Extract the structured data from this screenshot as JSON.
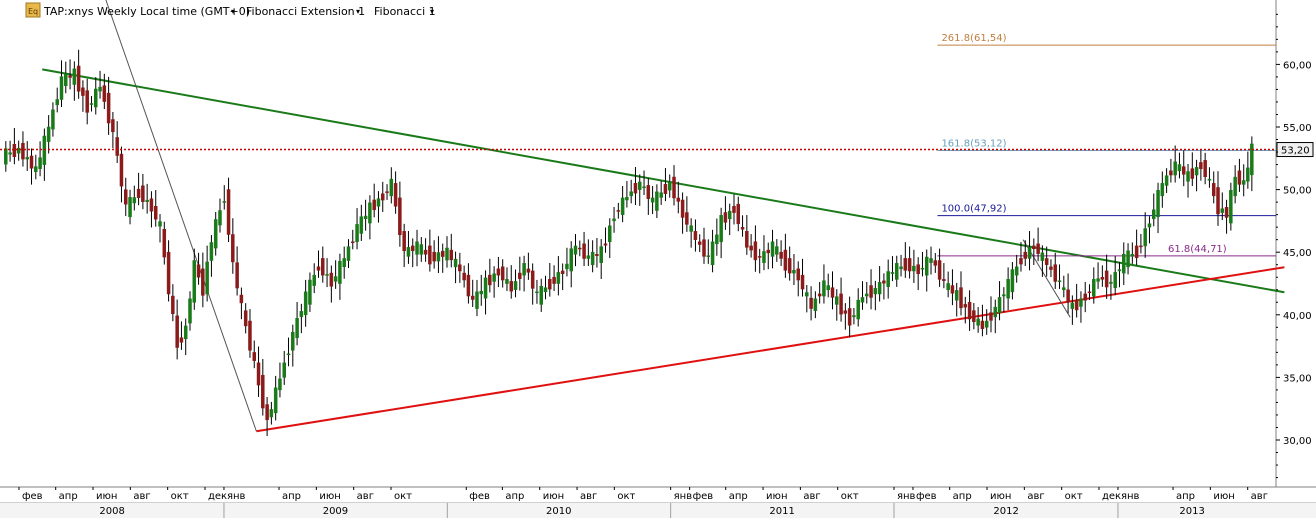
{
  "header": {
    "symbol_label": "TAP:xnys Weekly Local time (GMT+0)",
    "indicator_1": "Fibonacci Extension 1",
    "indicator_2": "Fibonacci 1",
    "logo_text": "Eq"
  },
  "chart_data": {
    "type": "candlestick",
    "title": "",
    "ylim": [
      26,
      65
    ],
    "y_ticks": [
      "30,00",
      "35,00",
      "40,00",
      "45,00",
      "50,00",
      "55,00",
      "60,00"
    ],
    "y_tick_values": [
      30,
      35,
      40,
      45,
      50,
      55,
      60
    ],
    "x_month_labels": [
      {
        "label": "фев",
        "date": "2008-02"
      },
      {
        "label": "апр",
        "date": "2008-04"
      },
      {
        "label": "июн",
        "date": "2008-06"
      },
      {
        "label": "авг",
        "date": "2008-08"
      },
      {
        "label": "окт",
        "date": "2008-10"
      },
      {
        "label": "дек",
        "date": "2008-12"
      },
      {
        "label": "янв",
        "date": "2009-01"
      },
      {
        "label": "апр",
        "date": "2009-04"
      },
      {
        "label": "июн",
        "date": "2009-06"
      },
      {
        "label": "авг",
        "date": "2009-08"
      },
      {
        "label": "окт",
        "date": "2009-10"
      },
      {
        "label": "фев",
        "date": "2010-02"
      },
      {
        "label": "апр",
        "date": "2010-04"
      },
      {
        "label": "июн",
        "date": "2010-06"
      },
      {
        "label": "авг",
        "date": "2010-08"
      },
      {
        "label": "окт",
        "date": "2010-10"
      },
      {
        "label": "янв",
        "date": "2011-01"
      },
      {
        "label": "фев",
        "date": "2011-02"
      },
      {
        "label": "апр",
        "date": "2011-04"
      },
      {
        "label": "июн",
        "date": "2011-06"
      },
      {
        "label": "авг",
        "date": "2011-08"
      },
      {
        "label": "окт",
        "date": "2011-10"
      },
      {
        "label": "янв",
        "date": "2012-01"
      },
      {
        "label": "фев",
        "date": "2012-02"
      },
      {
        "label": "апр",
        "date": "2012-04"
      },
      {
        "label": "июн",
        "date": "2012-06"
      },
      {
        "label": "авг",
        "date": "2012-08"
      },
      {
        "label": "окт",
        "date": "2012-10"
      },
      {
        "label": "дек",
        "date": "2012-12"
      },
      {
        "label": "янв",
        "date": "2013-01"
      },
      {
        "label": "апр",
        "date": "2013-04"
      },
      {
        "label": "июн",
        "date": "2013-06"
      },
      {
        "label": "авг",
        "date": "2013-08"
      }
    ],
    "x_year_labels": [
      {
        "label": "2008",
        "date": "2008-07"
      },
      {
        "label": "2009",
        "date": "2009-07"
      },
      {
        "label": "2010",
        "date": "2010-07"
      },
      {
        "label": "2011",
        "date": "2011-07"
      },
      {
        "label": "2012",
        "date": "2012-07"
      },
      {
        "label": "2013",
        "date": "2013-05"
      }
    ],
    "current_price": {
      "label": "53,20",
      "value": 53.2,
      "color": "#cc0000"
    },
    "trendlines": [
      {
        "name": "resistance",
        "color": "#1a7a1a",
        "start": {
          "date": "2008-03-10",
          "value": 59.6
        },
        "end": {
          "date": "2013-09-30",
          "value": 41.8
        }
      },
      {
        "name": "support",
        "color": "#e01010",
        "start": {
          "date": "2009-02-23",
          "value": 30.7
        },
        "end": {
          "date": "2013-09-30",
          "value": 43.8
        }
      },
      {
        "name": "swing-line-1",
        "color": "#555555",
        "start": {
          "date": "2008-06-16",
          "value": 66.0
        },
        "end": {
          "date": "2009-02-23",
          "value": 30.7
        }
      },
      {
        "name": "swing-line-2",
        "color": "#555555",
        "start": {
          "date": "2012-07-30",
          "value": 46.0
        },
        "end": {
          "date": "2012-10-15",
          "value": 39.8
        }
      }
    ],
    "fib_levels": [
      {
        "label": "261.8(61,54)",
        "value": 61.54,
        "color": "#c08040",
        "start_date": "2012-03-12"
      },
      {
        "label": "161.8(53,12)",
        "value": 53.12,
        "color": "#6aa0c0",
        "start_date": "2012-03-12"
      },
      {
        "label": "100.0(47,92)",
        "value": 47.92,
        "color": "#1a1a9a",
        "start_date": "2012-03-12"
      },
      {
        "label": "61.8(44,71)",
        "value": 44.71,
        "color": "#8a2a8a",
        "start_date": "2012-03-12"
      }
    ],
    "candle_colors": {
      "up": "#1a7a1a",
      "down": "#8b1a1a",
      "wick": "#000000"
    },
    "weekly_closes": [
      {
        "date": "2008-01-07",
        "value": 53.2
      },
      {
        "date": "2008-02-04",
        "value": 51.5
      },
      {
        "date": "2008-03-03",
        "value": 55.0
      },
      {
        "date": "2008-03-24",
        "value": 58.8
      },
      {
        "date": "2008-04-14",
        "value": 59.2
      },
      {
        "date": "2008-05-05",
        "value": 56.5
      },
      {
        "date": "2008-05-26",
        "value": 58.3
      },
      {
        "date": "2008-06-16",
        "value": 54.5
      },
      {
        "date": "2008-07-07",
        "value": 48.5
      },
      {
        "date": "2008-07-28",
        "value": 49.8
      },
      {
        "date": "2008-08-18",
        "value": 48.5
      },
      {
        "date": "2008-09-08",
        "value": 47.0
      },
      {
        "date": "2008-09-22",
        "value": 42.0
      },
      {
        "date": "2008-10-06",
        "value": 37.5
      },
      {
        "date": "2008-10-20",
        "value": 39.0
      },
      {
        "date": "2008-11-03",
        "value": 44.0
      },
      {
        "date": "2008-11-17",
        "value": 42.0
      },
      {
        "date": "2008-12-01",
        "value": 46.0
      },
      {
        "date": "2008-12-15",
        "value": 49.5
      },
      {
        "date": "2009-01-05",
        "value": 44.0
      },
      {
        "date": "2009-01-19",
        "value": 40.5
      },
      {
        "date": "2009-02-02",
        "value": 37.5
      },
      {
        "date": "2009-02-16",
        "value": 34.5
      },
      {
        "date": "2009-03-02",
        "value": 31.5
      },
      {
        "date": "2009-03-16",
        "value": 35.0
      },
      {
        "date": "2009-04-06",
        "value": 38.5
      },
      {
        "date": "2009-04-27",
        "value": 41.5
      },
      {
        "date": "2009-05-18",
        "value": 44.0
      },
      {
        "date": "2009-06-08",
        "value": 42.5
      },
      {
        "date": "2009-06-29",
        "value": 44.5
      },
      {
        "date": "2009-07-20",
        "value": 47.0
      },
      {
        "date": "2009-08-10",
        "value": 48.5
      },
      {
        "date": "2009-08-31",
        "value": 49.5
      },
      {
        "date": "2009-09-21",
        "value": 50.5
      },
      {
        "date": "2009-10-05",
        "value": 45.0
      },
      {
        "date": "2009-10-26",
        "value": 45.5
      },
      {
        "date": "2009-11-16",
        "value": 44.5
      },
      {
        "date": "2009-12-07",
        "value": 45.0
      },
      {
        "date": "2010-01-04",
        "value": 43.5
      },
      {
        "date": "2010-01-25",
        "value": 41.0
      },
      {
        "date": "2010-02-15",
        "value": 42.5
      },
      {
        "date": "2010-03-08",
        "value": 43.5
      },
      {
        "date": "2010-03-29",
        "value": 42.0
      },
      {
        "date": "2010-04-19",
        "value": 44.0
      },
      {
        "date": "2010-05-10",
        "value": 41.5
      },
      {
        "date": "2010-05-31",
        "value": 42.5
      },
      {
        "date": "2010-06-21",
        "value": 43.5
      },
      {
        "date": "2010-07-12",
        "value": 45.5
      },
      {
        "date": "2010-08-02",
        "value": 44.5
      },
      {
        "date": "2010-08-23",
        "value": 45.0
      },
      {
        "date": "2010-09-13",
        "value": 48.0
      },
      {
        "date": "2010-10-04",
        "value": 49.5
      },
      {
        "date": "2010-10-25",
        "value": 50.5
      },
      {
        "date": "2010-11-15",
        "value": 49.0
      },
      {
        "date": "2010-12-06",
        "value": 50.5
      },
      {
        "date": "2011-01-03",
        "value": 48.0
      },
      {
        "date": "2011-01-24",
        "value": 46.0
      },
      {
        "date": "2011-02-14",
        "value": 44.5
      },
      {
        "date": "2011-03-07",
        "value": 47.5
      },
      {
        "date": "2011-03-28",
        "value": 48.5
      },
      {
        "date": "2011-04-18",
        "value": 45.5
      },
      {
        "date": "2011-05-09",
        "value": 44.5
      },
      {
        "date": "2011-05-30",
        "value": 45.5
      },
      {
        "date": "2011-06-20",
        "value": 44.0
      },
      {
        "date": "2011-07-11",
        "value": 43.0
      },
      {
        "date": "2011-08-01",
        "value": 40.5
      },
      {
        "date": "2011-08-22",
        "value": 42.5
      },
      {
        "date": "2011-09-12",
        "value": 41.0
      },
      {
        "date": "2011-10-03",
        "value": 39.5
      },
      {
        "date": "2011-10-24",
        "value": 41.5
      },
      {
        "date": "2011-11-14",
        "value": 42.0
      },
      {
        "date": "2011-12-05",
        "value": 43.5
      },
      {
        "date": "2012-01-02",
        "value": 44.0
      },
      {
        "date": "2012-01-23",
        "value": 43.5
      },
      {
        "date": "2012-02-13",
        "value": 44.5
      },
      {
        "date": "2012-03-05",
        "value": 42.5
      },
      {
        "date": "2012-03-26",
        "value": 41.5
      },
      {
        "date": "2012-04-16",
        "value": 40.0
      },
      {
        "date": "2012-05-07",
        "value": 39.0
      },
      {
        "date": "2012-05-28",
        "value": 40.5
      },
      {
        "date": "2012-06-18",
        "value": 42.5
      },
      {
        "date": "2012-07-09",
        "value": 44.5
      },
      {
        "date": "2012-07-30",
        "value": 45.5
      },
      {
        "date": "2012-08-20",
        "value": 44.0
      },
      {
        "date": "2012-09-10",
        "value": 42.5
      },
      {
        "date": "2012-10-01",
        "value": 40.5
      },
      {
        "date": "2012-10-22",
        "value": 41.5
      },
      {
        "date": "2012-11-12",
        "value": 43.0
      },
      {
        "date": "2012-12-03",
        "value": 42.5
      },
      {
        "date": "2012-12-24",
        "value": 44.5
      },
      {
        "date": "2013-01-14",
        "value": 45.0
      },
      {
        "date": "2013-02-04",
        "value": 47.5
      },
      {
        "date": "2013-02-25",
        "value": 50.5
      },
      {
        "date": "2013-03-18",
        "value": 52.0
      },
      {
        "date": "2013-04-08",
        "value": 51.0
      },
      {
        "date": "2013-04-29",
        "value": 52.0
      },
      {
        "date": "2013-05-20",
        "value": 50.5
      },
      {
        "date": "2013-06-03",
        "value": 48.5
      },
      {
        "date": "2013-06-17",
        "value": 48.0
      },
      {
        "date": "2013-07-01",
        "value": 51.0
      },
      {
        "date": "2013-07-15",
        "value": 50.5
      },
      {
        "date": "2013-07-29",
        "value": 53.2
      }
    ]
  }
}
